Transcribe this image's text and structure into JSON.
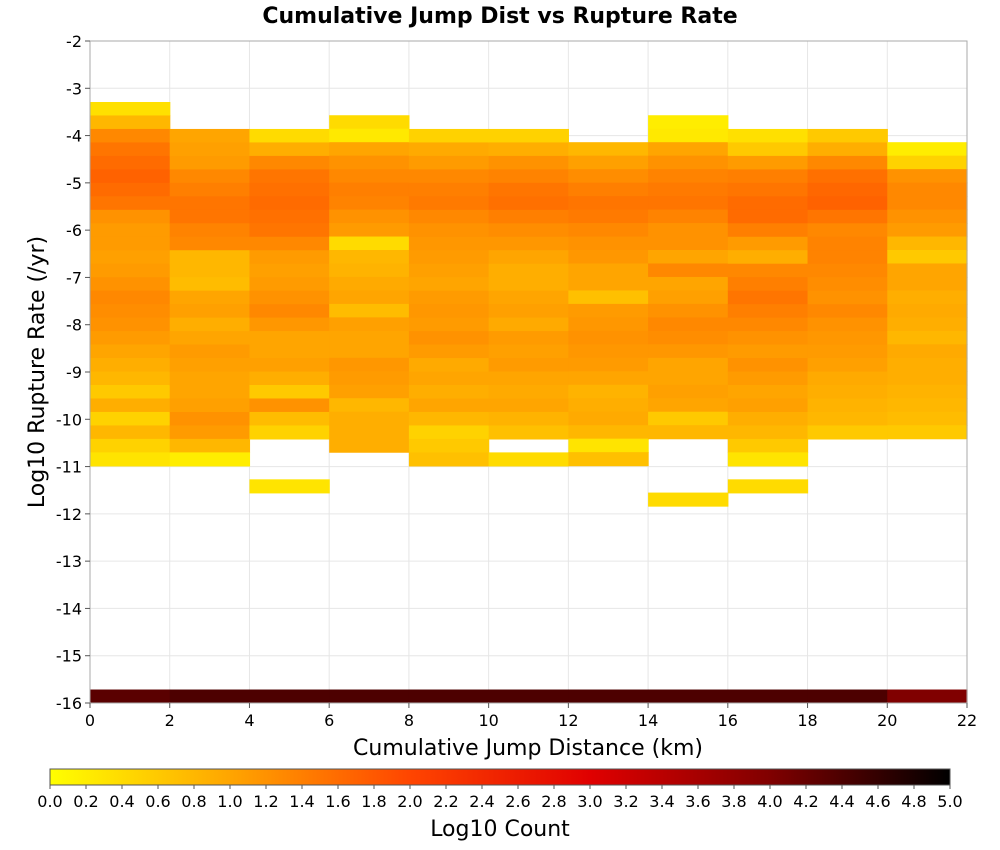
{
  "chart_data": {
    "type": "heatmap",
    "title": "Cumulative Jump Dist vs Rupture Rate",
    "xlabel": "Cumulative Jump Distance (km)",
    "ylabel": "Log10 Rupture Rate (/yr)",
    "xlim": [
      0,
      22
    ],
    "ylim": [
      -16,
      -2
    ],
    "x_ticks": [
      "0",
      "2",
      "4",
      "6",
      "8",
      "10",
      "12",
      "14",
      "16",
      "18",
      "20",
      "22"
    ],
    "y_ticks": [
      "-2",
      "-3",
      "-4",
      "-5",
      "-6",
      "-7",
      "-8",
      "-9",
      "-10",
      "-11",
      "-12",
      "-13",
      "-14",
      "-15",
      "-16"
    ],
    "x_bin_width": 2,
    "y_bin_height": 0.285,
    "grid": true,
    "colorbar": {
      "label": "Log10 Count",
      "range": [
        0.0,
        5.0
      ],
      "ticks": [
        "0.0",
        "0.2",
        "0.4",
        "0.6",
        "0.8",
        "1.0",
        "1.2",
        "1.4",
        "1.6",
        "1.8",
        "2.0",
        "2.2",
        "2.4",
        "2.6",
        "2.8",
        "3.0",
        "3.2",
        "3.4",
        "3.6",
        "3.8",
        "4.0",
        "4.2",
        "4.4",
        "4.6",
        "4.8",
        "5.0"
      ],
      "colors": [
        "#ffff00",
        "#ffa500",
        "#ff4500",
        "#e00000",
        "#800000",
        "#000000"
      ]
    },
    "columns": [
      {
        "x_start": 0,
        "y_top": -3.29,
        "values": [
          0.35,
          0.8,
          1.3,
          1.5,
          1.6,
          1.7,
          1.6,
          1.5,
          1.2,
          1.1,
          1.1,
          1.05,
          1.1,
          1.2,
          1.3,
          1.25,
          1.2,
          1.1,
          1.0,
          0.9,
          0.8,
          0.6,
          0.9,
          0.5,
          0.8,
          0.5,
          0.3
        ],
        "bottom_value": 4.3,
        "bottom_y": -16
      },
      {
        "x_start": 2,
        "y_top": -3.86,
        "values": [
          1.0,
          1.05,
          1.1,
          1.3,
          1.4,
          1.5,
          1.5,
          1.35,
          1.3,
          0.8,
          0.8,
          0.75,
          1.0,
          1.05,
          0.9,
          1.0,
          1.1,
          1.05,
          1.0,
          1.0,
          1.05,
          1.2,
          1.1,
          0.8,
          0.2
        ],
        "bottom_value": 4.4,
        "bottom_y": -16
      },
      {
        "x_start": 4,
        "y_top": -3.86,
        "values": [
          0.4,
          0.9,
          1.3,
          1.5,
          1.55,
          1.6,
          1.55,
          1.5,
          1.3,
          1.1,
          1.05,
          1.1,
          1.2,
          1.3,
          1.15,
          1.0,
          1.0,
          1.05,
          0.9,
          0.6,
          1.2,
          0.75,
          0.5,
          null,
          null,
          null,
          0.3
        ],
        "bottom_value": 4.4,
        "bottom_y": -16
      },
      {
        "x_start": 6,
        "y_top": -3.57,
        "values": [
          0.4,
          0.25,
          1.0,
          1.2,
          1.3,
          1.4,
          1.35,
          1.2,
          1.1,
          0.4,
          0.8,
          0.85,
          0.95,
          1.0,
          0.75,
          1.05,
          1.0,
          1.0,
          1.15,
          1.1,
          1.05,
          0.8,
          0.9,
          0.9,
          0.9
        ],
        "bottom_value": 4.4,
        "bottom_y": -16
      },
      {
        "x_start": 8,
        "y_top": -3.86,
        "values": [
          0.5,
          0.95,
          1.1,
          1.3,
          1.4,
          1.45,
          1.3,
          1.2,
          1.15,
          1.1,
          1.05,
          1.0,
          1.1,
          1.15,
          1.1,
          1.2,
          1.1,
          0.95,
          1.0,
          0.9,
          1.0,
          0.8,
          0.5,
          0.6,
          0.7
        ],
        "bottom_value": 4.4,
        "bottom_y": -16
      },
      {
        "x_start": 10,
        "y_top": -3.86,
        "values": [
          0.5,
          0.9,
          1.2,
          1.35,
          1.5,
          1.55,
          1.4,
          1.25,
          1.15,
          1.0,
          0.9,
          0.9,
          1.0,
          1.05,
          0.95,
          1.1,
          1.05,
          1.1,
          1.0,
          0.95,
          1.0,
          0.85,
          0.7,
          null,
          0.4
        ],
        "bottom_value": 4.4,
        "bottom_y": -16
      },
      {
        "x_start": 12,
        "y_top": -4.14,
        "values": [
          0.8,
          1.05,
          1.25,
          1.4,
          1.5,
          1.45,
          1.3,
          1.2,
          1.15,
          1.0,
          1.0,
          0.7,
          1.1,
          1.15,
          1.2,
          1.15,
          1.1,
          1.0,
          0.85,
          0.9,
          0.95,
          0.8,
          0.3,
          0.7
        ],
        "bottom_value": 4.4,
        "bottom_y": -16
      },
      {
        "x_start": 14,
        "y_top": -3.57,
        "values": [
          0.2,
          0.25,
          1.0,
          1.2,
          1.35,
          1.45,
          1.5,
          1.35,
          1.2,
          1.2,
          1.0,
          1.3,
          1.0,
          1.05,
          1.2,
          1.3,
          1.25,
          1.15,
          1.0,
          1.0,
          1.05,
          1.0,
          0.6,
          0.8,
          null,
          null,
          null,
          null,
          0.4
        ],
        "bottom_value": 4.4,
        "bottom_y": -16
      },
      {
        "x_start": 16,
        "y_top": -3.86,
        "values": [
          0.35,
          0.6,
          1.1,
          1.4,
          1.5,
          1.6,
          1.6,
          1.4,
          1.1,
          0.9,
          1.3,
          1.4,
          1.5,
          1.4,
          1.3,
          1.2,
          1.1,
          1.2,
          1.1,
          1.0,
          1.05,
          0.9,
          0.8,
          0.6,
          0.3,
          null,
          0.4
        ],
        "bottom_value": 4.4,
        "bottom_y": -16
      },
      {
        "x_start": 18,
        "y_top": -3.86,
        "values": [
          0.6,
          0.9,
          1.3,
          1.55,
          1.65,
          1.7,
          1.5,
          1.3,
          1.35,
          1.35,
          1.3,
          1.25,
          1.2,
          1.3,
          1.2,
          1.15,
          1.1,
          1.05,
          0.95,
          0.9,
          0.85,
          0.8,
          0.6
        ],
        "bottom_value": 4.4,
        "bottom_y": -16
      },
      {
        "x_start": 20,
        "y_top": -4.14,
        "values": [
          0.2,
          0.5,
          1.2,
          1.3,
          1.3,
          1.2,
          1.1,
          0.8,
          0.6,
          1.0,
          1.0,
          0.9,
          0.95,
          0.9,
          0.8,
          0.95,
          0.9,
          0.9,
          0.85,
          0.8,
          0.75,
          0.6
        ],
        "bottom_value": 4.0,
        "bottom_y": -16
      }
    ]
  }
}
